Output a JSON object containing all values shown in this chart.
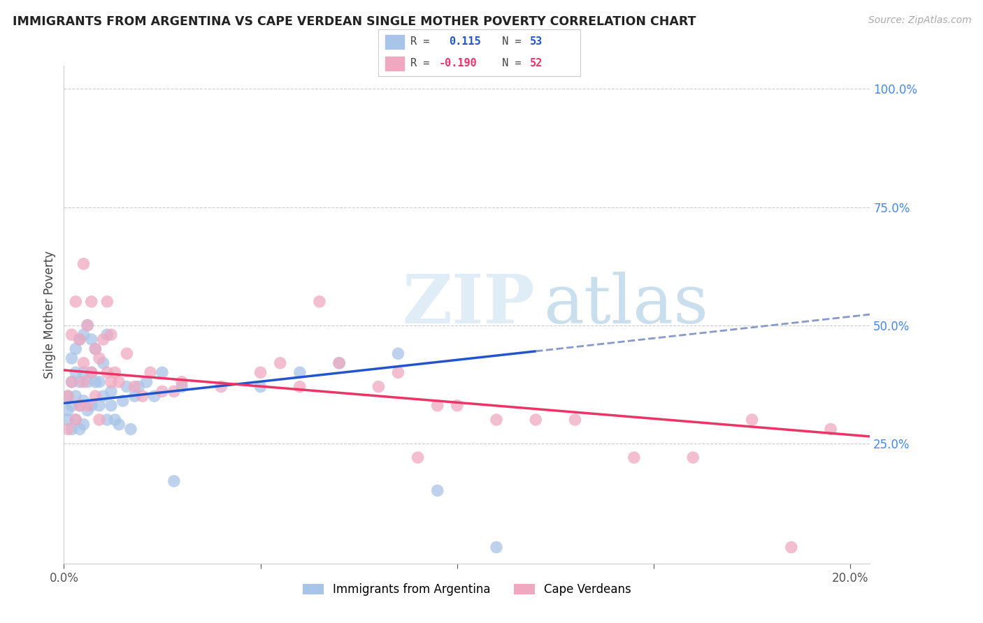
{
  "title": "IMMIGRANTS FROM ARGENTINA VS CAPE VERDEAN SINGLE MOTHER POVERTY CORRELATION CHART",
  "source": "Source: ZipAtlas.com",
  "ylabel": "Single Mother Poverty",
  "xlim": [
    0.0,
    0.205
  ],
  "ylim": [
    -0.005,
    1.05
  ],
  "blue_R": 0.115,
  "blue_N": 53,
  "pink_R": -0.19,
  "pink_N": 52,
  "blue_color": "#a8c4e8",
  "pink_color": "#f0a8c0",
  "blue_line_color": "#2255cc",
  "pink_line_color": "#ee3366",
  "dash_line_color": "#8899cc",
  "right_axis_color": "#4488ee",
  "watermark_zip": "ZIP",
  "watermark_atlas": "atlas",
  "blue_scatter_x": [
    0.001,
    0.001,
    0.001,
    0.002,
    0.002,
    0.002,
    0.002,
    0.003,
    0.003,
    0.003,
    0.003,
    0.004,
    0.004,
    0.004,
    0.004,
    0.005,
    0.005,
    0.005,
    0.005,
    0.006,
    0.006,
    0.006,
    0.007,
    0.007,
    0.007,
    0.008,
    0.008,
    0.009,
    0.009,
    0.01,
    0.01,
    0.011,
    0.011,
    0.012,
    0.012,
    0.013,
    0.014,
    0.015,
    0.016,
    0.017,
    0.018,
    0.019,
    0.021,
    0.023,
    0.025,
    0.028,
    0.03,
    0.05,
    0.06,
    0.07,
    0.085,
    0.095,
    0.11
  ],
  "blue_scatter_y": [
    0.3,
    0.32,
    0.35,
    0.28,
    0.33,
    0.38,
    0.43,
    0.3,
    0.35,
    0.4,
    0.45,
    0.28,
    0.33,
    0.38,
    0.47,
    0.29,
    0.34,
    0.4,
    0.48,
    0.32,
    0.38,
    0.5,
    0.4,
    0.47,
    0.33,
    0.38,
    0.45,
    0.33,
    0.38,
    0.35,
    0.42,
    0.3,
    0.48,
    0.36,
    0.33,
    0.3,
    0.29,
    0.34,
    0.37,
    0.28,
    0.35,
    0.37,
    0.38,
    0.35,
    0.4,
    0.17,
    0.37,
    0.37,
    0.4,
    0.42,
    0.44,
    0.15,
    0.03
  ],
  "pink_scatter_x": [
    0.001,
    0.001,
    0.002,
    0.002,
    0.003,
    0.003,
    0.004,
    0.004,
    0.005,
    0.005,
    0.005,
    0.006,
    0.006,
    0.007,
    0.007,
    0.008,
    0.008,
    0.009,
    0.009,
    0.01,
    0.011,
    0.011,
    0.012,
    0.012,
    0.013,
    0.014,
    0.016,
    0.018,
    0.02,
    0.022,
    0.025,
    0.028,
    0.03,
    0.04,
    0.05,
    0.055,
    0.06,
    0.065,
    0.07,
    0.08,
    0.085,
    0.09,
    0.095,
    0.1,
    0.11,
    0.12,
    0.13,
    0.145,
    0.16,
    0.175,
    0.185,
    0.195
  ],
  "pink_scatter_y": [
    0.28,
    0.35,
    0.38,
    0.48,
    0.3,
    0.55,
    0.33,
    0.47,
    0.38,
    0.42,
    0.63,
    0.33,
    0.5,
    0.4,
    0.55,
    0.35,
    0.45,
    0.3,
    0.43,
    0.47,
    0.4,
    0.55,
    0.38,
    0.48,
    0.4,
    0.38,
    0.44,
    0.37,
    0.35,
    0.4,
    0.36,
    0.36,
    0.38,
    0.37,
    0.4,
    0.42,
    0.37,
    0.55,
    0.42,
    0.37,
    0.4,
    0.22,
    0.33,
    0.33,
    0.3,
    0.3,
    0.3,
    0.22,
    0.22,
    0.3,
    0.03,
    0.28
  ]
}
